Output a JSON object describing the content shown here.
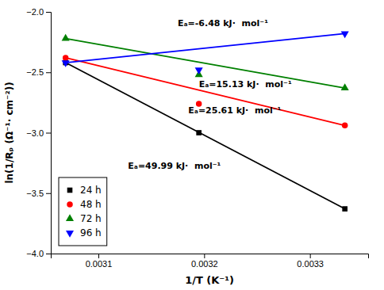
{
  "chart_data": {
    "type": "line",
    "xlabel": "1/T (K⁻¹)",
    "ylabel": "ln(1/Rₚ (Ω⁻¹· cm⁻²))",
    "xlim": [
      0.003055,
      0.003355
    ],
    "ylim": [
      -4.0,
      -2.0
    ],
    "xticks": [
      0.0031,
      0.0032,
      0.0033
    ],
    "yticks": [
      {
        "value": -4.0,
        "label": "−4.0"
      },
      {
        "value": -3.5,
        "label": "−3.5"
      },
      {
        "value": -3.0,
        "label": "−3.0"
      },
      {
        "value": -2.5,
        "label": "−2.5"
      },
      {
        "value": -2.0,
        "label": "−2.0"
      }
    ],
    "grid": false,
    "legend": "lower left",
    "series": [
      {
        "name": "24 h",
        "color": "black",
        "marker": "square",
        "line": {
          "x": [
            0.003069,
            0.003333
          ],
          "values": [
            -2.42,
            -3.63
          ]
        },
        "points": {
          "x": [
            0.003195
          ],
          "values": [
            -3.0
          ]
        }
      },
      {
        "name": "48 h",
        "color": "red",
        "marker": "circle",
        "line": {
          "x": [
            0.003069,
            0.003333
          ],
          "values": [
            -2.38,
            -2.94
          ]
        },
        "points": {
          "x": [
            0.003195
          ],
          "values": [
            -2.76
          ]
        }
      },
      {
        "name": "72 h",
        "color": "green",
        "marker": "triangle-up",
        "line": {
          "x": [
            0.003069,
            0.003333
          ],
          "values": [
            -2.22,
            -2.63
          ]
        },
        "points": {
          "x": [
            0.003195
          ],
          "values": [
            -2.52
          ]
        }
      },
      {
        "name": "96 h",
        "color": "blue",
        "marker": "triangle-down",
        "line": {
          "x": [
            0.003069,
            0.003333
          ],
          "values": [
            -2.42,
            -2.18
          ]
        },
        "points": {
          "x": [
            0.003195
          ],
          "values": [
            -2.48
          ]
        }
      }
    ],
    "annotations": [
      {
        "text": "Eₐ=-6.48 kJ·  mol⁻¹",
        "x": 0.003175,
        "y": -2.1
      },
      {
        "text": "Eₐ=15.13 kJ·  mol⁻¹",
        "x": 0.003195,
        "y": -2.6
      },
      {
        "text": "Eₐ=25.61 kJ·  mol⁻¹",
        "x": 0.003185,
        "y": -2.82
      },
      {
        "text": "Eₐ=49.99 kJ·  mol⁻¹",
        "x": 0.003128,
        "y": -3.28
      }
    ]
  }
}
